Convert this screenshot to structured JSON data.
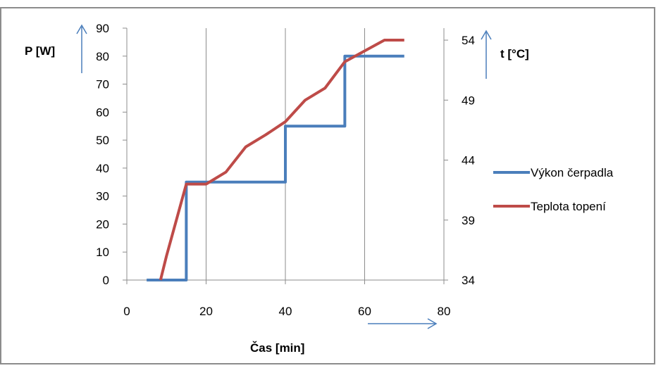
{
  "chart_data": {
    "type": "line",
    "title": "",
    "xlabel": "Čas [min]",
    "ylabel_left": "P [W]",
    "ylabel_right": "t [°C]",
    "xlim": [
      0,
      80
    ],
    "ylim_left": [
      0,
      90
    ],
    "ylim_right": [
      34,
      55
    ],
    "x_ticks": [
      0,
      20,
      40,
      60,
      80
    ],
    "y_ticks_left": [
      0,
      10,
      20,
      30,
      40,
      50,
      60,
      70,
      80,
      90
    ],
    "y_ticks_right": [
      34,
      39,
      44,
      49,
      54
    ],
    "grid": "vertical",
    "legend_position": "right",
    "series": [
      {
        "name": "Výkon čerpadla",
        "axis": "left",
        "color": "#4a7ebb",
        "x": [
          5,
          15,
          15,
          40,
          40,
          55,
          55,
          70
        ],
        "y": [
          0,
          0,
          35,
          35,
          55,
          55,
          80,
          80
        ]
      },
      {
        "name": "Teplota topení",
        "axis": "right",
        "color": "#be4b48",
        "x": [
          8.5,
          10,
          15,
          20,
          25,
          30,
          35,
          40,
          45,
          50,
          55,
          60,
          65,
          70
        ],
        "y": [
          34,
          36,
          42,
          42,
          43,
          45.1,
          46.1,
          47.2,
          49,
          50,
          52.2,
          53.1,
          54,
          54
        ]
      }
    ]
  }
}
